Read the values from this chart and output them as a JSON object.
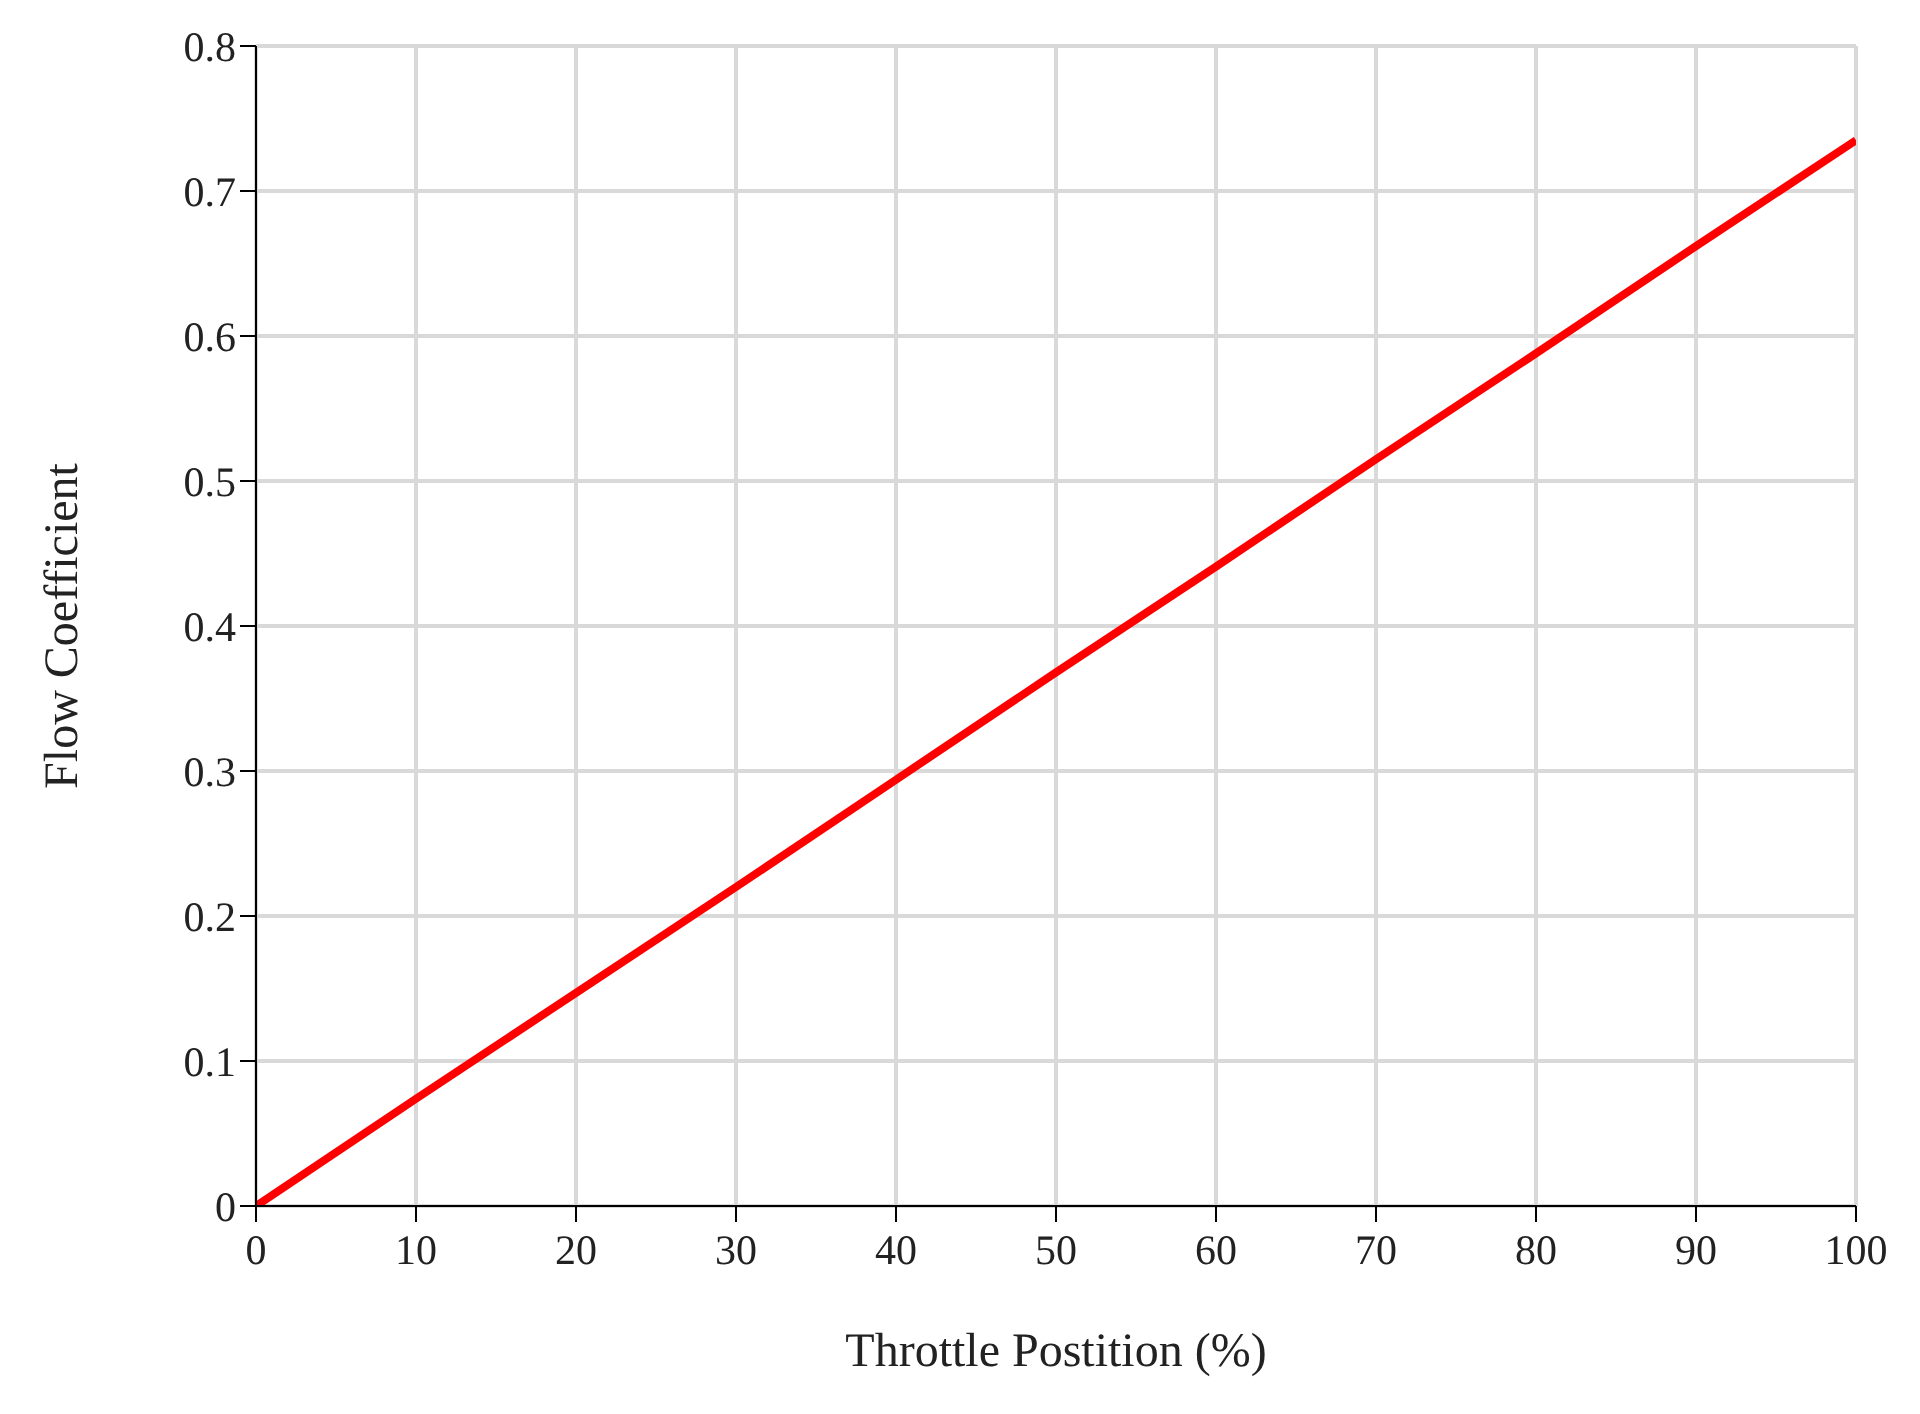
{
  "chart_data": {
    "type": "line",
    "xlabel": "Throttle Postition (%)",
    "ylabel": "Flow Coefficient",
    "x": [
      0,
      10,
      20,
      30,
      40,
      50,
      60,
      70,
      80,
      90,
      100
    ],
    "series": [
      {
        "color": "#ff0000",
        "values": [
          0,
          0.074,
          0.147,
          0.22,
          0.294,
          0.368,
          0.441,
          0.515,
          0.588,
          0.662,
          0.735
        ]
      }
    ],
    "xlim": [
      0,
      100
    ],
    "xticks": [
      0,
      10,
      20,
      30,
      40,
      50,
      60,
      70,
      80,
      90,
      100
    ],
    "ylim": [
      0,
      0.8
    ],
    "yticks": [
      0,
      0.1,
      0.2,
      0.3,
      0.4,
      0.5,
      0.6,
      0.7,
      0.8
    ],
    "grid": true,
    "marker": "none",
    "line_style": "solid"
  }
}
